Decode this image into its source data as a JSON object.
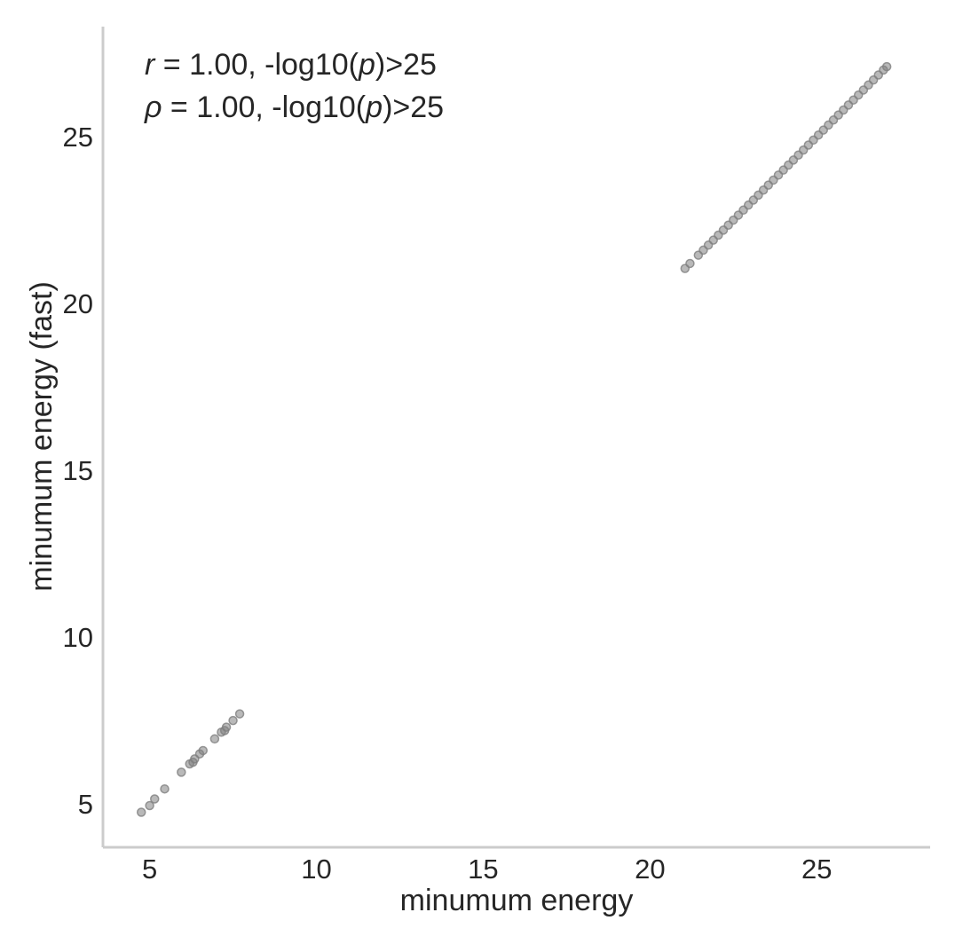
{
  "chart_data": {
    "type": "scatter",
    "xlabel": "minumum energy",
    "ylabel": "minumum energy (fast)",
    "xlim": [
      3.6,
      28.4
    ],
    "ylim": [
      3.7,
      28.3
    ],
    "xticks": [
      5,
      10,
      15,
      20,
      25
    ],
    "yticks": [
      5,
      10,
      15,
      20,
      25
    ],
    "grid": false,
    "point_color": "#808080",
    "axis_color": "#cccccc",
    "annotations": [
      {
        "symbol": "r",
        "text": " = 1.00, -log10(",
        "italic_arg": "p",
        "suffix": ")>25"
      },
      {
        "symbol": "ρ",
        "text": " = 1.00, -log10(",
        "italic_arg": "p",
        "suffix": ")>25"
      }
    ],
    "series": [
      {
        "points": [
          [
            4.75,
            4.75
          ],
          [
            5.0,
            4.95
          ],
          [
            5.15,
            5.15
          ],
          [
            5.45,
            5.45
          ],
          [
            5.95,
            5.95
          ],
          [
            6.2,
            6.2
          ],
          [
            6.3,
            6.25
          ],
          [
            6.35,
            6.35
          ],
          [
            6.5,
            6.5
          ],
          [
            6.6,
            6.6
          ],
          [
            6.95,
            6.95
          ],
          [
            7.15,
            7.15
          ],
          [
            7.25,
            7.2
          ],
          [
            7.3,
            7.3
          ],
          [
            7.5,
            7.5
          ],
          [
            7.7,
            7.7
          ],
          [
            21.05,
            21.05
          ],
          [
            21.2,
            21.2
          ],
          [
            21.45,
            21.45
          ],
          [
            21.6,
            21.6
          ],
          [
            21.75,
            21.75
          ],
          [
            21.9,
            21.9
          ],
          [
            22.05,
            22.05
          ],
          [
            22.2,
            22.2
          ],
          [
            22.35,
            22.35
          ],
          [
            22.5,
            22.5
          ],
          [
            22.65,
            22.65
          ],
          [
            22.8,
            22.8
          ],
          [
            22.95,
            22.95
          ],
          [
            23.1,
            23.1
          ],
          [
            23.25,
            23.25
          ],
          [
            23.4,
            23.4
          ],
          [
            23.55,
            23.55
          ],
          [
            23.7,
            23.7
          ],
          [
            23.85,
            23.85
          ],
          [
            24.0,
            24.0
          ],
          [
            24.15,
            24.15
          ],
          [
            24.3,
            24.3
          ],
          [
            24.45,
            24.45
          ],
          [
            24.6,
            24.6
          ],
          [
            24.75,
            24.75
          ],
          [
            24.9,
            24.9
          ],
          [
            25.05,
            25.05
          ],
          [
            25.2,
            25.2
          ],
          [
            25.35,
            25.35
          ],
          [
            25.5,
            25.5
          ],
          [
            25.65,
            25.65
          ],
          [
            25.8,
            25.8
          ],
          [
            25.95,
            25.95
          ],
          [
            26.1,
            26.1
          ],
          [
            26.25,
            26.25
          ],
          [
            26.4,
            26.4
          ],
          [
            26.55,
            26.55
          ],
          [
            26.7,
            26.7
          ],
          [
            26.85,
            26.85
          ],
          [
            27.0,
            27.0
          ],
          [
            27.1,
            27.1
          ]
        ]
      }
    ]
  }
}
